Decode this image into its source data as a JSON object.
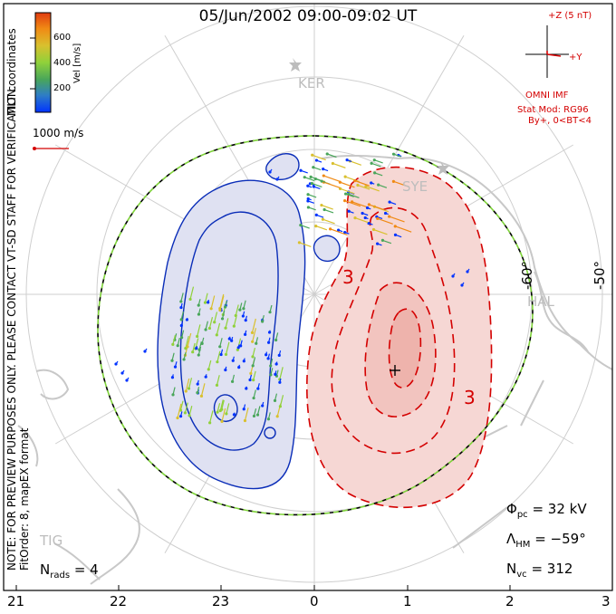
{
  "title": "05/Jun/2002 09:00-09:02 UT",
  "coordinates_label": "MLT coordinates",
  "colorbar": {
    "label": "Vel [m/s]",
    "ticks": [
      "600",
      "400",
      "200"
    ],
    "colors": [
      "#0033ff",
      "#2e7dc6",
      "#49a65a",
      "#90d13a",
      "#d9c02e",
      "#f08a14",
      "#e03b10"
    ]
  },
  "reference_vector": {
    "label": "1000 m/s"
  },
  "imf": {
    "z_label": "+Z (5 nT)",
    "y_label": "+Y",
    "source": "OMNI IMF",
    "model": "Stat Mod: RG96",
    "condition": "By+, 0<BT<4"
  },
  "note": "NOTE: FOR PREVIEW PURPOSES ONLY. PLEASE CONTACT VT-SD STAFF FOR VERIFICATION.",
  "fit_info": "FitOrder: 8, mapEX format",
  "stations": {
    "ker": "KER",
    "sye": "SYE",
    "hal": "HAL",
    "tig": "TIG"
  },
  "latitude_labels": {
    "lat_60": "-60°",
    "lat_50": "-50°"
  },
  "contour_labels": {
    "pos": "3",
    "pos2": "3"
  },
  "stats": {
    "phi_sym": "Φ",
    "phi_sub": "pc",
    "phi_val": "= 32 kV",
    "lam_sym": "Λ",
    "lam_sub": "HM",
    "lam_val": "= −59°",
    "nvc_sym": "N",
    "nvc_sub": "vc",
    "nvc_val": "= 312",
    "nrads_sym": "N",
    "nrads_sub": "rads",
    "nrads_val": "= 4"
  },
  "mlt_ticks": [
    "21",
    "22",
    "23",
    "0",
    "1",
    "2",
    "3"
  ],
  "colors": {
    "neg_contour": "#0a2db8",
    "neg_fill": "#dfe1f2",
    "pos_contour": "#d40000",
    "pos_fill": "#f6d7d4",
    "coast": "#c8c8c8",
    "boundary_dash": "#7fd33a"
  }
}
